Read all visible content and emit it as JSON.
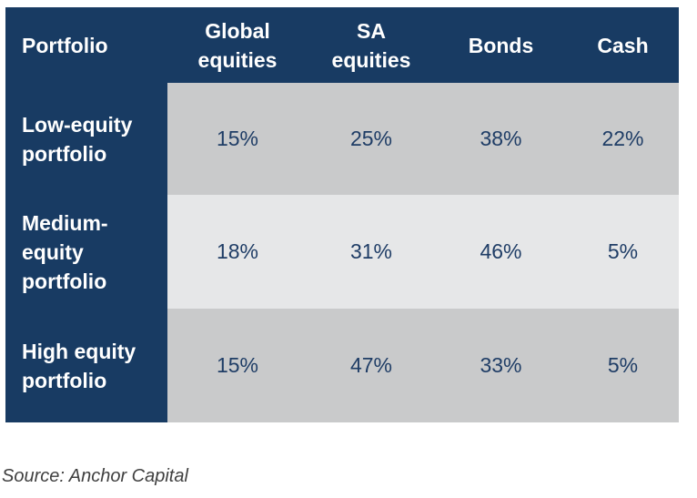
{
  "chart_data": {
    "type": "table",
    "columns": [
      "Portfolio",
      "Global\nequities",
      "SA\nequities",
      "Bonds",
      "Cash"
    ],
    "rows": [
      {
        "label": "Low-equity\nportfolio",
        "values": [
          "15%",
          "25%",
          "38%",
          "22%"
        ]
      },
      {
        "label": "Medium-\nequity\nportfolio",
        "values": [
          "18%",
          "31%",
          "46%",
          "5%"
        ]
      },
      {
        "label": "High equity\nportfolio",
        "values": [
          "15%",
          "47%",
          "33%",
          "5%"
        ]
      }
    ],
    "source": "Source: Anchor Capital"
  },
  "colors": {
    "header_bg": "#183b63",
    "row_dark": "#c9cacb",
    "row_light": "#e6e7e8",
    "value_text": "#1f3d66"
  }
}
